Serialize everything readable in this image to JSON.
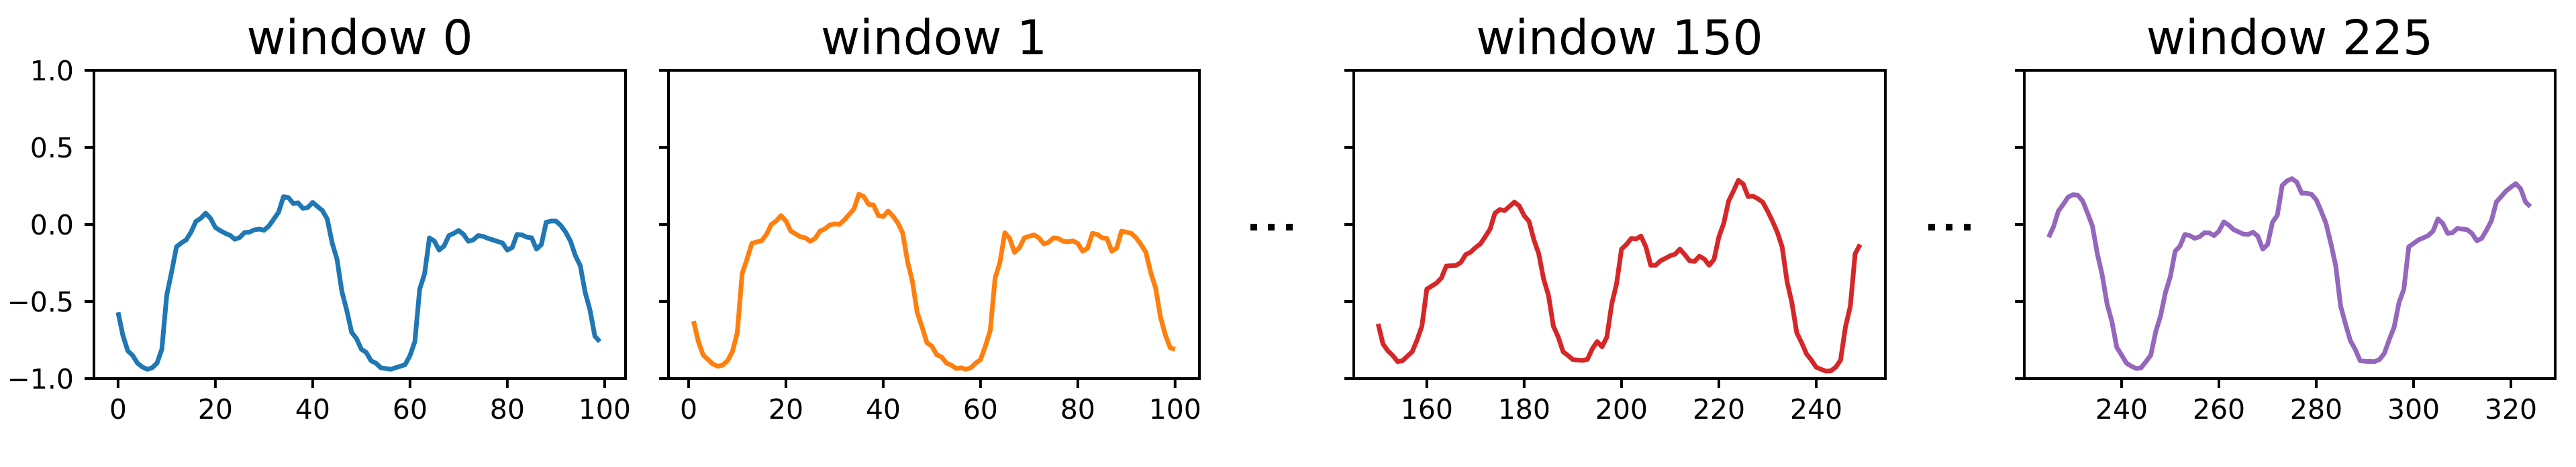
{
  "chart_data": [
    {
      "type": "line",
      "title": "window 0",
      "color": "#1f77b4",
      "xlabel": "",
      "ylabel": "",
      "xlim": [
        -4.95,
        104.3
      ],
      "ylim": [
        -1.0,
        1.0
      ],
      "xticks": [
        0,
        20,
        40,
        60,
        80,
        100
      ],
      "yticks": [
        -1.0,
        -0.5,
        0.0,
        0.5,
        1.0
      ],
      "ytick_labels": [
        "−1.0",
        "−0.5",
        "0.0",
        "0.5",
        "1.0"
      ],
      "show_ytick_labels": true,
      "grid": false,
      "x": [
        0,
        1,
        2,
        3,
        4,
        5,
        6,
        7,
        8,
        9,
        10,
        11,
        12,
        13,
        14,
        15,
        16,
        17,
        18,
        19,
        20,
        21,
        22,
        23,
        24,
        25,
        26,
        27,
        28,
        29,
        30,
        31,
        32,
        33,
        34,
        35,
        36,
        37,
        38,
        39,
        40,
        41,
        42,
        43,
        44,
        45,
        46,
        47,
        48,
        49,
        50,
        51,
        52,
        53,
        54,
        55,
        56,
        57,
        58,
        59,
        60,
        61,
        62,
        63,
        64,
        65,
        66,
        67,
        68,
        69,
        70,
        71,
        72,
        73,
        74,
        75,
        76,
        77,
        78,
        79,
        80,
        81,
        82,
        83,
        84,
        85,
        86,
        87,
        88,
        89,
        90,
        91,
        92,
        93,
        94,
        95,
        96,
        97,
        98,
        99
      ],
      "y": [
        -0.57,
        -0.72,
        -0.82,
        -0.85,
        -0.9,
        -0.925,
        -0.94,
        -0.93,
        -0.9,
        -0.81,
        -0.46,
        -0.31,
        -0.145,
        -0.12,
        -0.1,
        -0.05,
        0.02,
        0.04,
        0.073,
        0.04,
        -0.02,
        -0.04,
        -0.057,
        -0.07,
        -0.096,
        -0.085,
        -0.052,
        -0.05,
        -0.035,
        -0.03,
        -0.038,
        -0.01,
        0.035,
        0.08,
        0.18,
        0.175,
        0.136,
        0.14,
        0.104,
        0.11,
        0.143,
        0.116,
        0.09,
        0.035,
        -0.12,
        -0.225,
        -0.435,
        -0.557,
        -0.7,
        -0.74,
        -0.81,
        -0.83,
        -0.885,
        -0.9,
        -0.93,
        -0.935,
        -0.94,
        -0.93,
        -0.92,
        -0.91,
        -0.85,
        -0.76,
        -0.42,
        -0.32,
        -0.087,
        -0.108,
        -0.166,
        -0.14,
        -0.072,
        -0.058,
        -0.039,
        -0.064,
        -0.109,
        -0.1,
        -0.072,
        -0.077,
        -0.09,
        -0.1,
        -0.11,
        -0.12,
        -0.166,
        -0.15,
        -0.065,
        -0.068,
        -0.082,
        -0.087,
        -0.16,
        -0.13,
        0.015,
        0.022,
        0.022,
        -0.007,
        -0.05,
        -0.109,
        -0.203,
        -0.268,
        -0.44,
        -0.557,
        -0.725,
        -0.76
      ]
    },
    {
      "type": "line",
      "title": "window 1",
      "color": "#ff7f0e",
      "xlabel": "",
      "ylabel": "",
      "xlim": [
        -4.14,
        105.0
      ],
      "ylim": [
        -1.0,
        1.0
      ],
      "xticks": [
        0,
        20,
        40,
        60,
        80,
        100
      ],
      "yticks": [
        -1.0,
        -0.5,
        0.0,
        0.5,
        1.0
      ],
      "show_ytick_labels": false,
      "grid": false,
      "x": [
        1,
        2,
        3,
        4,
        5,
        6,
        7,
        8,
        9,
        10,
        11,
        12,
        13,
        14,
        15,
        16,
        17,
        18,
        19,
        20,
        21,
        22,
        23,
        24,
        25,
        26,
        27,
        28,
        29,
        30,
        31,
        32,
        33,
        34,
        35,
        36,
        37,
        38,
        39,
        40,
        41,
        42,
        43,
        44,
        45,
        46,
        47,
        48,
        49,
        50,
        51,
        52,
        53,
        54,
        55,
        56,
        57,
        58,
        59,
        60,
        61,
        62,
        63,
        64,
        65,
        66,
        67,
        68,
        69,
        70,
        71,
        72,
        73,
        74,
        75,
        76,
        77,
        78,
        79,
        80,
        81,
        82,
        83,
        84,
        85,
        86,
        87,
        88,
        89,
        90,
        91,
        92,
        93,
        94,
        95,
        96,
        97,
        98,
        99,
        100
      ],
      "y": [
        -0.627,
        -0.76,
        -0.848,
        -0.877,
        -0.906,
        -0.92,
        -0.913,
        -0.884,
        -0.826,
        -0.703,
        -0.319,
        -0.225,
        -0.123,
        -0.113,
        -0.106,
        -0.065,
        0.0,
        0.022,
        0.058,
        0.022,
        -0.043,
        -0.062,
        -0.08,
        -0.087,
        -0.109,
        -0.091,
        -0.043,
        -0.029,
        -0.004,
        0.004,
        0.0,
        0.029,
        0.065,
        0.101,
        0.196,
        0.181,
        0.13,
        0.126,
        0.058,
        0.051,
        0.087,
        0.054,
        0.01,
        -0.055,
        -0.239,
        -0.37,
        -0.572,
        -0.667,
        -0.768,
        -0.79,
        -0.845,
        -0.86,
        -0.9,
        -0.913,
        -0.935,
        -0.93,
        -0.94,
        -0.93,
        -0.9,
        -0.877,
        -0.79,
        -0.688,
        -0.348,
        -0.246,
        -0.054,
        -0.091,
        -0.181,
        -0.152,
        -0.087,
        -0.077,
        -0.068,
        -0.087,
        -0.126,
        -0.116,
        -0.087,
        -0.091,
        -0.109,
        -0.112,
        -0.106,
        -0.123,
        -0.174,
        -0.155,
        -0.058,
        -0.065,
        -0.087,
        -0.091,
        -0.174,
        -0.152,
        -0.043,
        -0.05,
        -0.058,
        -0.087,
        -0.13,
        -0.181,
        -0.312,
        -0.413,
        -0.601,
        -0.717,
        -0.801,
        -0.81
      ]
    },
    {
      "type": "line",
      "title": "window 150",
      "color": "#d62728",
      "xlabel": "",
      "ylabel": "",
      "xlim": [
        145.0,
        254.2
      ],
      "ylim": [
        -1.0,
        1.0
      ],
      "xticks": [
        160,
        180,
        200,
        220,
        240
      ],
      "yticks": [
        -1.0,
        -0.5,
        0.0,
        0.5,
        1.0
      ],
      "show_ytick_labels": false,
      "grid": false,
      "x": [
        150,
        151,
        152,
        153,
        154,
        155,
        156,
        157,
        158,
        159,
        160,
        161,
        162,
        163,
        164,
        165,
        166,
        167,
        168,
        169,
        170,
        171,
        172,
        173,
        174,
        175,
        176,
        177,
        178,
        179,
        180,
        181,
        182,
        183,
        184,
        185,
        186,
        187,
        188,
        189,
        190,
        191,
        192,
        193,
        194,
        195,
        196,
        197,
        198,
        199,
        200,
        201,
        202,
        203,
        204,
        205,
        206,
        207,
        208,
        209,
        210,
        211,
        212,
        213,
        214,
        215,
        216,
        217,
        218,
        219,
        220,
        221,
        222,
        223,
        224,
        225,
        226,
        227,
        228,
        229,
        230,
        231,
        232,
        233,
        234,
        235,
        236,
        237,
        238,
        239,
        240,
        241,
        242,
        243,
        244,
        245,
        246,
        247,
        248,
        249
      ],
      "y": [
        -0.645,
        -0.775,
        -0.82,
        -0.85,
        -0.89,
        -0.885,
        -0.855,
        -0.826,
        -0.75,
        -0.66,
        -0.42,
        -0.4,
        -0.38,
        -0.348,
        -0.27,
        -0.268,
        -0.266,
        -0.246,
        -0.195,
        -0.18,
        -0.15,
        -0.126,
        -0.08,
        -0.03,
        0.073,
        0.097,
        0.09,
        0.118,
        0.145,
        0.12,
        0.058,
        0.02,
        -0.1,
        -0.19,
        -0.355,
        -0.46,
        -0.66,
        -0.73,
        -0.826,
        -0.85,
        -0.877,
        -0.88,
        -0.882,
        -0.875,
        -0.807,
        -0.76,
        -0.794,
        -0.73,
        -0.515,
        -0.384,
        -0.16,
        -0.13,
        -0.091,
        -0.094,
        -0.075,
        -0.145,
        -0.265,
        -0.265,
        -0.236,
        -0.22,
        -0.203,
        -0.193,
        -0.16,
        -0.196,
        -0.236,
        -0.24,
        -0.206,
        -0.224,
        -0.265,
        -0.227,
        -0.08,
        0.007,
        0.152,
        0.217,
        0.286,
        0.262,
        0.181,
        0.184,
        0.167,
        0.145,
        0.087,
        0.022,
        -0.05,
        -0.145,
        -0.37,
        -0.507,
        -0.703,
        -0.768,
        -0.84,
        -0.88,
        -0.927,
        -0.94,
        -0.952,
        -0.95,
        -0.927,
        -0.88,
        -0.667,
        -0.53,
        -0.19,
        -0.13
      ]
    },
    {
      "type": "line",
      "title": "window 225",
      "color": "#9467bd",
      "xlabel": "",
      "ylabel": "",
      "xlim": [
        220.0,
        329.1
      ],
      "ylim": [
        -1.0,
        1.0
      ],
      "xticks": [
        240,
        260,
        280,
        300,
        320
      ],
      "yticks": [
        -1.0,
        -0.5,
        0.0,
        0.5,
        1.0
      ],
      "show_ytick_labels": false,
      "grid": false,
      "x": [
        225,
        226,
        227,
        228,
        229,
        230,
        231,
        232,
        233,
        234,
        235,
        236,
        237,
        238,
        239,
        240,
        241,
        242,
        243,
        244,
        245,
        246,
        247,
        248,
        249,
        250,
        251,
        252,
        253,
        254,
        255,
        256,
        257,
        258,
        259,
        260,
        261,
        262,
        263,
        264,
        265,
        266,
        267,
        268,
        269,
        270,
        271,
        272,
        273,
        274,
        275,
        276,
        277,
        278,
        279,
        280,
        281,
        282,
        283,
        284,
        285,
        286,
        287,
        288,
        289,
        290,
        291,
        292,
        293,
        294,
        295,
        296,
        297,
        298,
        299,
        300,
        301,
        302,
        303,
        304,
        305,
        306,
        307,
        308,
        309,
        310,
        311,
        312,
        313,
        314,
        315,
        316,
        317,
        318,
        319,
        320,
        321,
        322,
        323,
        324
      ],
      "y": [
        -0.083,
        -0.015,
        0.087,
        0.13,
        0.178,
        0.193,
        0.19,
        0.152,
        0.073,
        -0.01,
        -0.19,
        -0.326,
        -0.515,
        -0.63,
        -0.797,
        -0.848,
        -0.9,
        -0.92,
        -0.935,
        -0.93,
        -0.89,
        -0.848,
        -0.696,
        -0.594,
        -0.442,
        -0.34,
        -0.174,
        -0.14,
        -0.065,
        -0.072,
        -0.09,
        -0.08,
        -0.054,
        -0.055,
        -0.072,
        -0.043,
        0.017,
        -0.004,
        -0.033,
        -0.048,
        -0.062,
        -0.065,
        -0.05,
        -0.077,
        -0.16,
        -0.13,
        0.015,
        0.06,
        0.253,
        0.283,
        0.297,
        0.275,
        0.203,
        0.203,
        0.196,
        0.16,
        0.087,
        0.007,
        -0.123,
        -0.268,
        -0.529,
        -0.645,
        -0.754,
        -0.81,
        -0.884,
        -0.888,
        -0.889,
        -0.89,
        -0.876,
        -0.836,
        -0.746,
        -0.667,
        -0.507,
        -0.42,
        -0.145,
        -0.123,
        -0.1,
        -0.087,
        -0.072,
        -0.043,
        0.036,
        0.007,
        -0.058,
        -0.054,
        -0.025,
        -0.03,
        -0.034,
        -0.058,
        -0.106,
        -0.09,
        -0.036,
        0.025,
        0.145,
        0.181,
        0.217,
        0.242,
        0.265,
        0.232,
        0.145,
        0.116
      ]
    }
  ],
  "figure": {
    "ellipsis_markers": [
      "⋯",
      "⋯"
    ],
    "panel_titles": [
      "window 0",
      "window 1",
      "window 150",
      "window 225"
    ]
  }
}
